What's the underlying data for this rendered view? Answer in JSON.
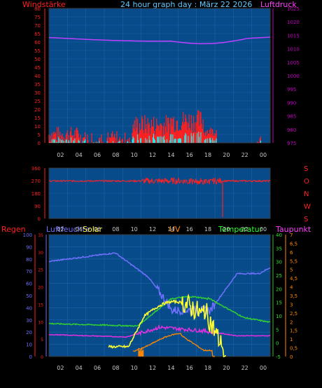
{
  "top": {
    "left_label": "Windstärke",
    "title": "24 hour graph day : März 22 2026",
    "right_label": "Luftdruck",
    "left_ticks": [
      "80",
      "75",
      "70",
      "65",
      "60",
      "55",
      "50",
      "45",
      "40",
      "35",
      "30",
      "25",
      "20",
      "15",
      "10",
      "5",
      "0"
    ],
    "right_ticks": [
      "1025",
      "1020",
      "1015",
      "1010",
      "1005",
      "1000",
      "995",
      "990",
      "985",
      "980",
      "975"
    ]
  },
  "x_ticks": [
    "02",
    "04",
    "06",
    "08",
    "10",
    "12",
    "14",
    "16",
    "18",
    "20",
    "22",
    "00"
  ],
  "wind_dir": {
    "left_ticks": [
      "360",
      "270",
      "180",
      "90",
      "0"
    ],
    "right_letters": [
      "S",
      "O",
      "N",
      "W",
      "S"
    ]
  },
  "bottom": {
    "labels": {
      "rain": "Regen",
      "humidity": "Luftfeuchte",
      "solar": "Solar",
      "uv": "UV",
      "temperature": "Temperatur",
      "dewpoint": "Taupunkt"
    },
    "left_ticks": [
      "100",
      "90",
      "80",
      "70",
      "60",
      "50",
      "40",
      "30",
      "20",
      "10",
      "0"
    ],
    "rain_ticks": [
      "35",
      "30",
      "25",
      "20",
      "15",
      "10",
      "5",
      "0"
    ],
    "temp_ticks": [
      "40",
      "35",
      "30",
      "25",
      "20",
      "15",
      "10",
      "5",
      "0",
      "-5"
    ],
    "uv_ticks": [
      "7",
      "6,5",
      "6",
      "5,5",
      "5",
      "4,5",
      "4",
      "3,5",
      "3",
      "2,5",
      "2",
      "1,5",
      "1",
      "0,5",
      "0"
    ]
  },
  "colors": {
    "bg": "#000000",
    "plot_bg": "#084b8a",
    "grid": "#1c64a8",
    "red": "#ff2020",
    "magenta": "#c040ff",
    "cyan": "#20f0f0",
    "blue": "#7070ff",
    "green": "#30d030",
    "yellow": "#ffff30",
    "orange": "#ff8800",
    "uv_label": "#ff8800",
    "temp_label": "#30ff30",
    "dew_label": "#ff40ff",
    "title": "#60c8ff"
  }
}
